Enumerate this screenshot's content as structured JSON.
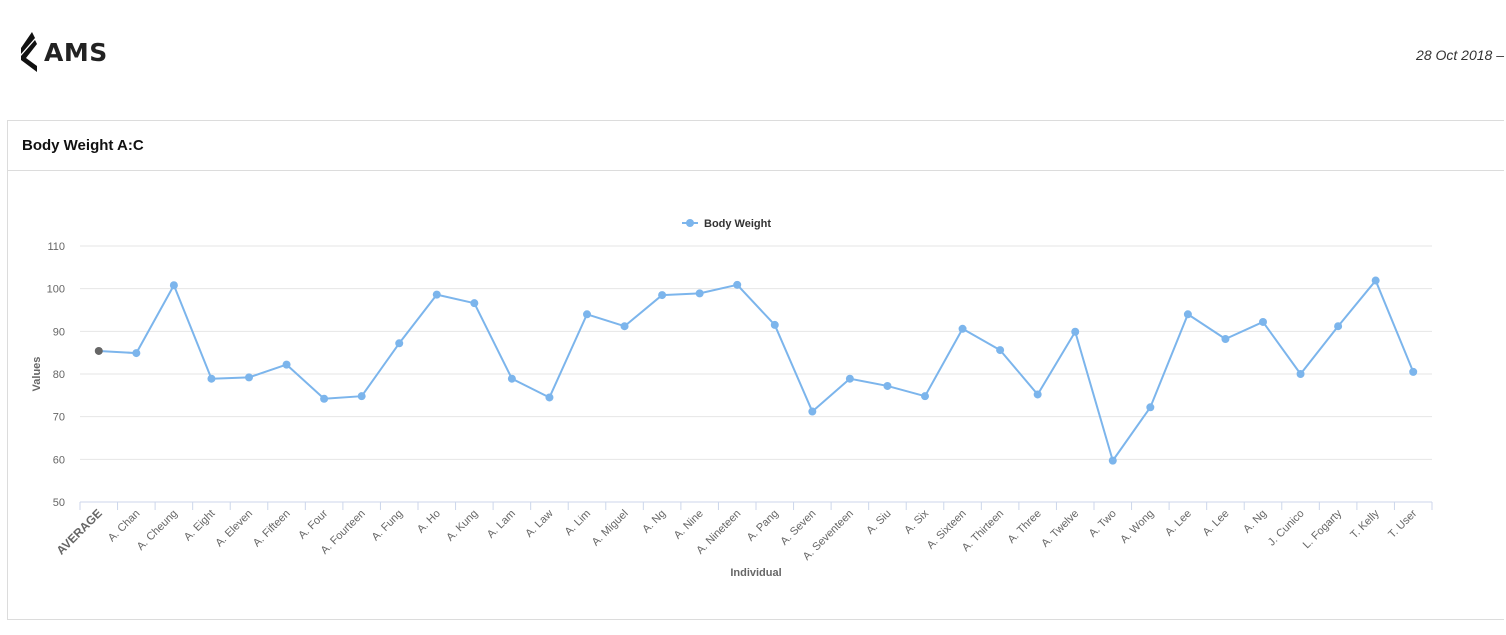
{
  "header": {
    "logo_text": "AMS",
    "date_text": "28 Oct 2018 –"
  },
  "panel": {
    "title": "Body Weight A:C"
  },
  "colors": {
    "line": "#7cb5ec",
    "average_point": "#666666",
    "grid": "#e6e6e6",
    "axis_text": "#666666"
  },
  "chart_data": {
    "type": "line",
    "title": "",
    "xlabel": "Individual",
    "ylabel": "Values",
    "ylim": [
      50,
      110
    ],
    "yticks": [
      50,
      60,
      70,
      80,
      90,
      100,
      110
    ],
    "grid": true,
    "legend_position": "top-center",
    "categories": [
      "AVERAGE",
      "A. Chan",
      "A. Cheung",
      "A. Eight",
      "A. Eleven",
      "A. Fifteen",
      "A. Four",
      "A. Fourteen",
      "A. Fung",
      "A. Ho",
      "A. Kung",
      "A. Lam",
      "A. Law",
      "A. Lim",
      "A. Miguel",
      "A. Ng",
      "A. Nine",
      "A. Nineteen",
      "A. Pang",
      "A. Seven",
      "A. Seventeen",
      "A. Siu",
      "A. Six",
      "A. Sixteen",
      "A. Thirteen",
      "A. Three",
      "A. Twelve",
      "A. Two",
      "A. Wong",
      "A. Lee",
      "A. Lee",
      "A. Ng",
      "J. Cunico",
      "L. Fogarty",
      "T. Kelly",
      "T. User"
    ],
    "series": [
      {
        "name": "Body Weight",
        "values": [
          85.4,
          84.9,
          100.8,
          78.9,
          79.2,
          82.2,
          74.2,
          74.8,
          87.2,
          98.6,
          96.6,
          78.9,
          74.5,
          94.0,
          91.2,
          98.5,
          98.9,
          100.9,
          91.5,
          71.2,
          78.9,
          77.2,
          74.8,
          90.6,
          85.6,
          75.2,
          89.9,
          59.7,
          72.2,
          94.0,
          88.2,
          92.2,
          80.0,
          91.2,
          101.9,
          80.5
        ]
      }
    ]
  }
}
